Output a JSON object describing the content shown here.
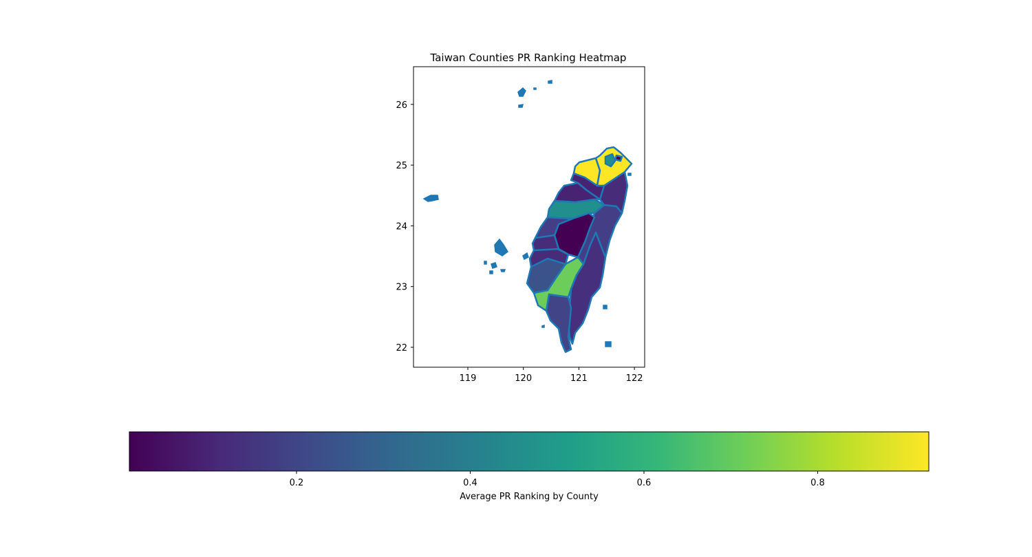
{
  "map": {
    "title": "Taiwan Counties PR Ranking Heatmap",
    "x_ticks": [
      "119",
      "120",
      "121",
      "122"
    ],
    "y_ticks": [
      "22",
      "23",
      "24",
      "25",
      "26"
    ],
    "boundary_color": "#1f77b4",
    "regions": [
      {
        "id": "taipei",
        "value": 0.92,
        "color": "#fde725"
      },
      {
        "id": "new-taipei-north",
        "value": 0.92,
        "color": "#fde725"
      },
      {
        "id": "new-taipei-west",
        "value": 0.92,
        "color": "#fde725"
      },
      {
        "id": "keelung",
        "value": 0.05,
        "color": "#440154"
      },
      {
        "id": "taipei-center",
        "value": 0.5,
        "color": "#21918c"
      },
      {
        "id": "taoyuan",
        "value": 0.08,
        "color": "#482374"
      },
      {
        "id": "yilan",
        "value": 0.1,
        "color": "#472c7a"
      },
      {
        "id": "hsinchu",
        "value": 0.08,
        "color": "#482374"
      },
      {
        "id": "miaoli-hsinchu-band",
        "value": 0.48,
        "color": "#21908d"
      },
      {
        "id": "taichung",
        "value": 0.15,
        "color": "#433e85"
      },
      {
        "id": "nantou",
        "value": 0.02,
        "color": "#440154"
      },
      {
        "id": "hualien",
        "value": 0.15,
        "color": "#433e85"
      },
      {
        "id": "changhua",
        "value": 0.1,
        "color": "#472c7a"
      },
      {
        "id": "yunlin",
        "value": 0.1,
        "color": "#472c7a"
      },
      {
        "id": "chiayi",
        "value": 0.25,
        "color": "#3b528b"
      },
      {
        "id": "tainan-kaohsiung",
        "value": 0.75,
        "color": "#6ccd5a"
      },
      {
        "id": "pingtung",
        "value": 0.2,
        "color": "#414487"
      },
      {
        "id": "taitung",
        "value": 0.12,
        "color": "#46307e"
      }
    ]
  },
  "colorbar": {
    "label": "Average PR Ranking by County",
    "ticks": [
      "0.2",
      "0.4",
      "0.6",
      "0.8"
    ],
    "colors": [
      "#440154",
      "#482878",
      "#3e4989",
      "#31688e",
      "#26828e",
      "#1f9e89",
      "#35b779",
      "#6ece58",
      "#b5de2b",
      "#fde725"
    ]
  }
}
